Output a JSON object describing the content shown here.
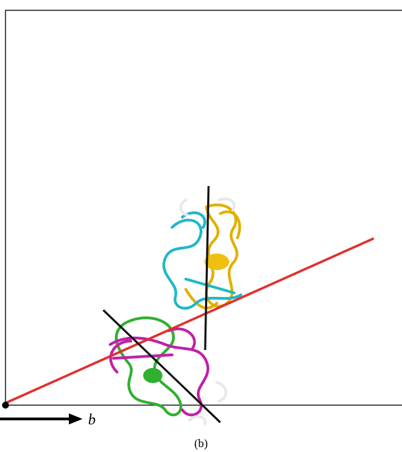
{
  "figure": {
    "axis_label": "b",
    "caption": "(b)"
  }
}
